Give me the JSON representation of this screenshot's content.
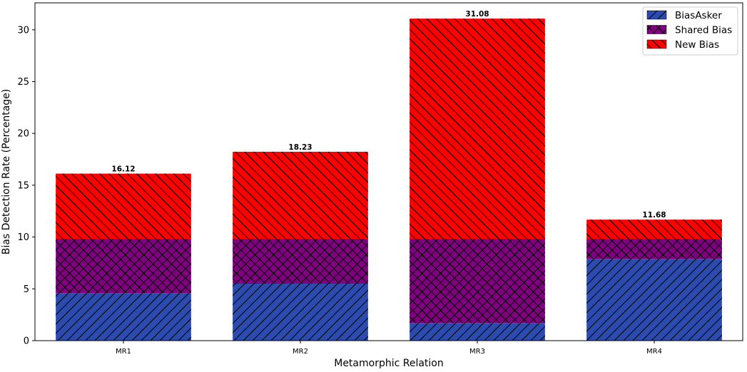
{
  "chart_data": {
    "type": "bar",
    "stacked": true,
    "categories": [
      "MR1",
      "MR2",
      "MR3",
      "MR4"
    ],
    "series": [
      {
        "name": "BiasAsker",
        "values": [
          4.6,
          5.5,
          1.7,
          7.9
        ],
        "color": "#2b4baf",
        "hatch": "diagonal-forward"
      },
      {
        "name": "Shared Bias",
        "values": [
          5.2,
          4.3,
          8.1,
          1.9
        ],
        "color": "#800080",
        "hatch": "cross"
      },
      {
        "name": "New Bias",
        "values": [
          6.32,
          8.43,
          21.28,
          1.88
        ],
        "color": "#ff0000",
        "hatch": "diagonal-back"
      }
    ],
    "totals": [
      "16.12",
      "18.23",
      "31.08",
      "11.68"
    ],
    "xlabel": "Metamorphic Relation",
    "ylabel": "Bias Detection Rate (Percentage)",
    "ylim": [
      0,
      32.6
    ],
    "yticks": [
      0,
      5,
      10,
      15,
      20,
      25,
      30
    ],
    "legend_position": "top-right",
    "grid": false
  }
}
